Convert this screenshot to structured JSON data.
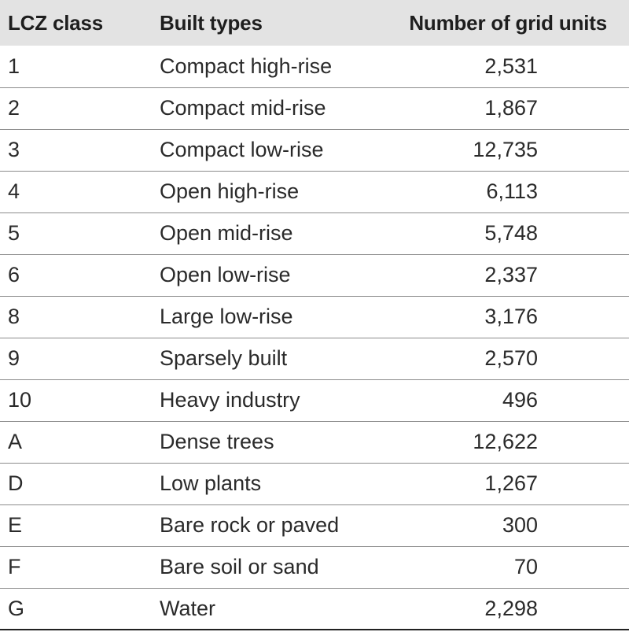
{
  "table": {
    "headers": {
      "class": "LCZ class",
      "type": "Built types",
      "count": "Number of grid units"
    },
    "rows": [
      {
        "cls": "1",
        "type": "Compact high-rise",
        "count": "2,531"
      },
      {
        "cls": "2",
        "type": "Compact mid-rise",
        "count": "1,867"
      },
      {
        "cls": "3",
        "type": "Compact low-rise",
        "count": "12,735"
      },
      {
        "cls": "4",
        "type": "Open high-rise",
        "count": "6,113"
      },
      {
        "cls": "5",
        "type": "Open mid-rise",
        "count": "5,748"
      },
      {
        "cls": "6",
        "type": "Open low-rise",
        "count": "2,337"
      },
      {
        "cls": "8",
        "type": "Large low-rise",
        "count": "3,176"
      },
      {
        "cls": "9",
        "type": "Sparsely built",
        "count": "2,570"
      },
      {
        "cls": "10",
        "type": "Heavy industry",
        "count": "496"
      },
      {
        "cls": "A",
        "type": "Dense trees",
        "count": "12,622"
      },
      {
        "cls": "D",
        "type": "Low plants",
        "count": "1,267"
      },
      {
        "cls": "E",
        "type": "Bare rock or paved",
        "count": "300"
      },
      {
        "cls": "F",
        "type": "Bare soil or sand",
        "count": "70"
      },
      {
        "cls": "G",
        "type": "Water",
        "count": "2,298"
      }
    ]
  }
}
